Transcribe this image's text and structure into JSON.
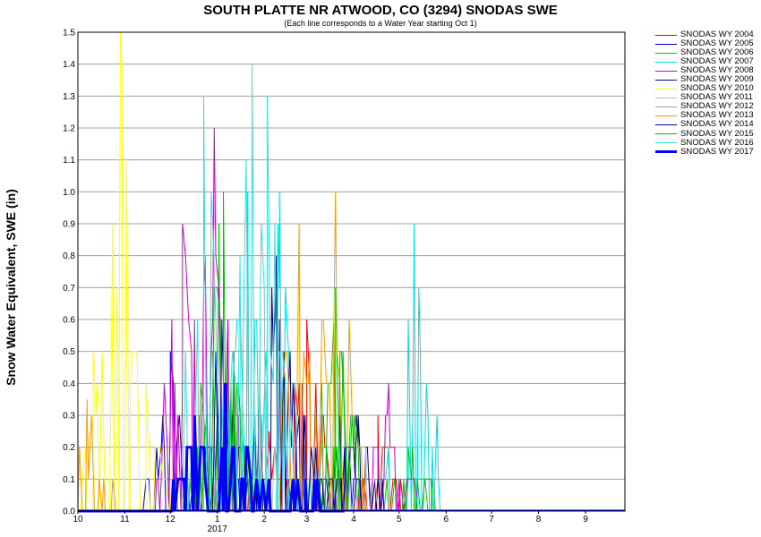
{
  "chart_data": {
    "type": "line",
    "title": "SOUTH PLATTE NR ATWOOD, CO (3294) SNODAS SWE",
    "subtitle": "(Each line corresponds to a Water Year starting Oct 1)",
    "ylabel": "Snow Water Equivalent, SWE (in)",
    "xlabel": "",
    "ylim": [
      0,
      1.5
    ],
    "xlim_days": [
      0,
      361
    ],
    "grid": true,
    "legend_position": "right",
    "x_ticks": [
      {
        "label": "10",
        "day": 0
      },
      {
        "label": "11",
        "day": 31
      },
      {
        "label": "12",
        "day": 61
      },
      {
        "label": "1",
        "day": 92
      },
      {
        "label": "2",
        "day": 123
      },
      {
        "label": "3",
        "day": 151
      },
      {
        "label": "4",
        "day": 182
      },
      {
        "label": "5",
        "day": 212
      },
      {
        "label": "6",
        "day": 243
      },
      {
        "label": "7",
        "day": 273
      },
      {
        "label": "8",
        "day": 304
      },
      {
        "label": "9",
        "day": 335
      }
    ],
    "year_label": {
      "label": "2017",
      "day": 92
    },
    "y_ticks": [
      "0.0",
      "0.1",
      "0.2",
      "0.3",
      "0.4",
      "0.5",
      "0.6",
      "0.7",
      "0.8",
      "0.9",
      "1.0",
      "1.1",
      "1.2",
      "1.3",
      "1.4",
      "1.5"
    ],
    "series": [
      {
        "name": "SNODAS WY 2004",
        "color": "#ff0000",
        "width": 1,
        "peaks": [
          [
            151,
            0.6
          ],
          [
            198,
            0.3
          ],
          [
            126,
            0.25
          ]
        ]
      },
      {
        "name": "SNODAS WY 2005",
        "color": "#0000cc",
        "width": 1,
        "peaks": [
          [
            61,
            0.5
          ],
          [
            92,
            0.4
          ],
          [
            173,
            0.3
          ]
        ]
      },
      {
        "name": "SNODAS WY 2006",
        "color": "#00cc00",
        "width": 1,
        "peaks": [
          [
            93,
            0.9
          ],
          [
            170,
            0.7
          ],
          [
            218,
            0.2
          ]
        ]
      },
      {
        "name": "SNODAS WY 2007",
        "color": "#00dddd",
        "width": 1,
        "peaks": [
          [
            112,
            1.0
          ],
          [
            133,
            1.0
          ],
          [
            222,
            0.9
          ]
        ]
      },
      {
        "name": "SNODAS WY 2008",
        "color": "#cc00cc",
        "width": 1,
        "peaks": [
          [
            69,
            0.9
          ],
          [
            90,
            1.2
          ],
          [
            205,
            0.4
          ]
        ]
      },
      {
        "name": "SNODAS WY 2009",
        "color": "#000080",
        "width": 1,
        "peaks": [
          [
            131,
            0.8
          ],
          [
            140,
            0.5
          ],
          [
            185,
            0.3
          ]
        ]
      },
      {
        "name": "SNODAS WY 2010",
        "color": "#ffff00",
        "width": 1,
        "peaks": [
          [
            10,
            0.5
          ],
          [
            28,
            1.5
          ],
          [
            45,
            0.4
          ]
        ]
      },
      {
        "name": "SNODAS WY 2011",
        "color": "#c0c0c0",
        "width": 1,
        "peaks": [
          [
            120,
            0.5
          ],
          [
            190,
            0.2
          ]
        ]
      },
      {
        "name": "SNODAS WY 2012",
        "color": "#a0a0a0",
        "width": 1,
        "peaks": [
          [
            80,
            0.3
          ],
          [
            160,
            0.2
          ]
        ]
      },
      {
        "name": "SNODAS WY 2013",
        "color": "#ff9900",
        "width": 1,
        "peaks": [
          [
            146,
            0.9
          ],
          [
            170,
            1.0
          ],
          [
            6,
            0.35
          ]
        ]
      },
      {
        "name": "SNODAS WY 2014",
        "color": "#000099",
        "width": 1,
        "peaks": [
          [
            95,
            0.6
          ],
          [
            150,
            0.3
          ],
          [
            176,
            0.2
          ]
        ]
      },
      {
        "name": "SNODAS WY 2015",
        "color": "#00bb00",
        "width": 1,
        "peaks": [
          [
            96,
            1.0
          ],
          [
            173,
            0.5
          ],
          [
            221,
            0.2
          ]
        ]
      },
      {
        "name": "SNODAS WY 2016",
        "color": "#33e0e0",
        "width": 1,
        "peaks": [
          [
            83,
            1.3
          ],
          [
            115,
            1.4
          ],
          [
            125,
            1.3
          ]
        ]
      },
      {
        "name": "SNODAS WY 2017",
        "color": "#0000ff",
        "width": 3,
        "peaks": [
          [
            77,
            0.3
          ],
          [
            97,
            0.4
          ],
          [
            111,
            0.2
          ],
          [
            150,
            0.1
          ]
        ]
      }
    ]
  }
}
